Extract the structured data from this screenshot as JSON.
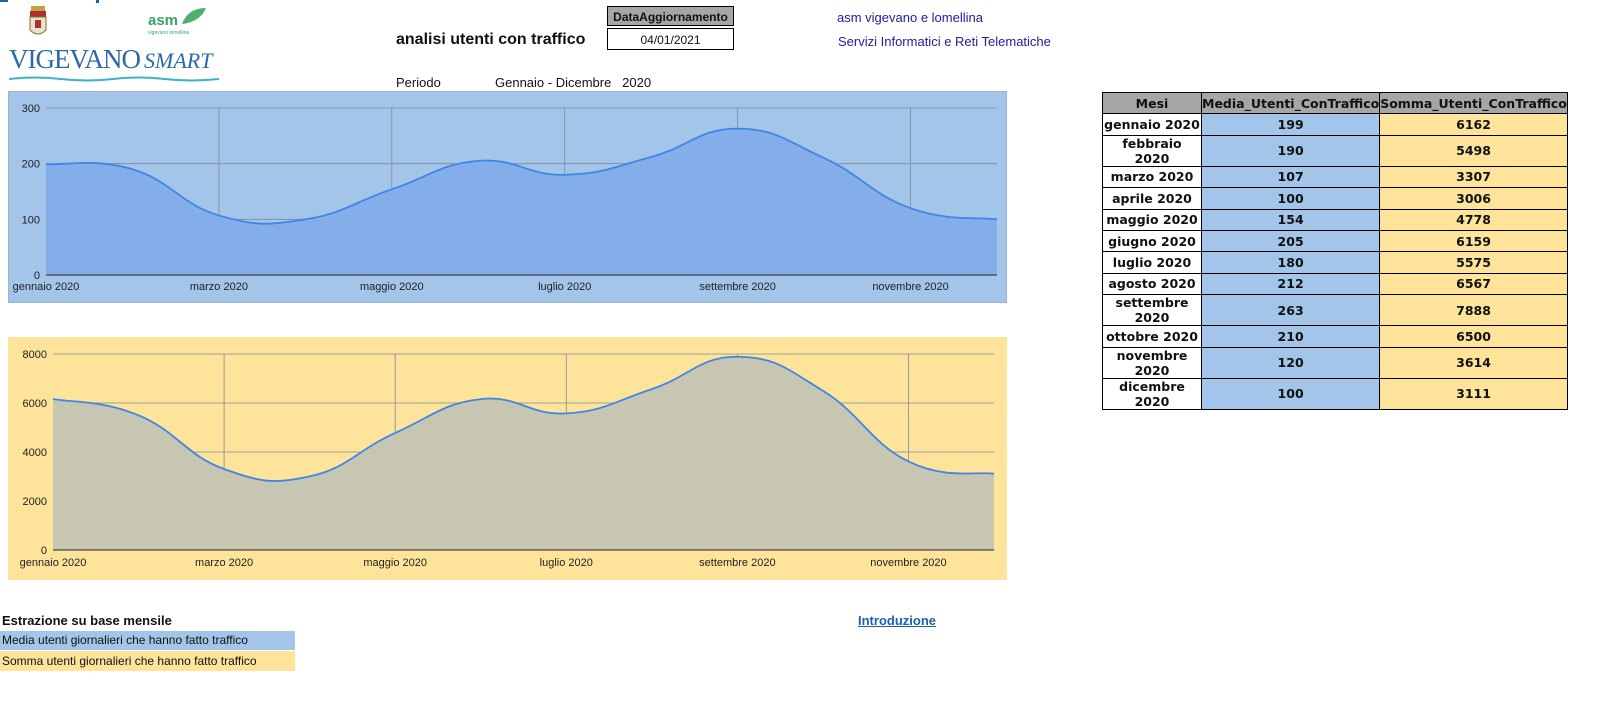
{
  "header": {
    "asm_logo_text": "asm",
    "asm_logo_sub": "vigevano lomellina",
    "vigevano_logo_main": "VIGEVANO",
    "vigevano_logo_smart": "SMART",
    "title": "analisi utenti con traffico",
    "date_label": "DataAggiornamento",
    "date_value": "04/01/2021",
    "org_name": "asm vigevano e lomellina",
    "org_dept": "Servizi Informatici e Reti Telematiche",
    "periodo_label": "Periodo",
    "periodo_value": "Gennaio - Dicembre   2020"
  },
  "colors": {
    "media": "#a3c5ea",
    "somma": "#fde49a",
    "line": "#3f86e6",
    "media_fill": "#84aeea",
    "somma_fill": "#c6c6b3"
  },
  "chart_data": [
    {
      "type": "area",
      "x": [
        "gennaio 2020",
        "febbraio 2020",
        "marzo 2020",
        "aprile 2020",
        "maggio 2020",
        "giugno 2020",
        "luglio 2020",
        "agosto 2020",
        "settembre 2020",
        "ottobre 2020",
        "novembre 2020",
        "dicembre 2020"
      ],
      "x_tick_labels": [
        "gennaio 2020",
        "marzo 2020",
        "maggio 2020",
        "luglio 2020",
        "settembre 2020",
        "novembre 2020"
      ],
      "series": [
        {
          "values": [
            199,
            190,
            107,
            100,
            154,
            205,
            180,
            212,
            263,
            210,
            120,
            100
          ]
        }
      ],
      "ylim": [
        0,
        300
      ],
      "yticks": [
        0,
        100,
        200,
        300
      ],
      "grid": true,
      "smooth": true
    },
    {
      "type": "area",
      "x": [
        "gennaio 2020",
        "febbraio 2020",
        "marzo 2020",
        "aprile 2020",
        "maggio 2020",
        "giugno 2020",
        "luglio 2020",
        "agosto 2020",
        "settembre 2020",
        "ottobre 2020",
        "novembre 2020",
        "dicembre 2020"
      ],
      "x_tick_labels": [
        "gennaio 2020",
        "marzo 2020",
        "maggio 2020",
        "luglio 2020",
        "settembre 2020",
        "novembre 2020"
      ],
      "series": [
        {
          "values": [
            6162,
            5498,
            3307,
            3006,
            4778,
            6159,
            5575,
            6567,
            7888,
            6500,
            3614,
            3111
          ]
        }
      ],
      "ylim": [
        0,
        8000
      ],
      "yticks": [
        0,
        2000,
        4000,
        6000,
        8000
      ],
      "grid": true,
      "smooth": true
    }
  ],
  "table": {
    "headers": [
      "Mesi",
      "Media_Utenti_ConTraffico",
      "Somma_Utenti_ConTraffico"
    ],
    "rows": [
      [
        "gennaio 2020",
        "199",
        "6162"
      ],
      [
        "febbraio 2020",
        "190",
        "5498"
      ],
      [
        "marzo 2020",
        "107",
        "3307"
      ],
      [
        "aprile 2020",
        "100",
        "3006"
      ],
      [
        "maggio 2020",
        "154",
        "4778"
      ],
      [
        "giugno 2020",
        "205",
        "6159"
      ],
      [
        "luglio 2020",
        "180",
        "5575"
      ],
      [
        "agosto 2020",
        "212",
        "6567"
      ],
      [
        "settembre 2020",
        "263",
        "7888"
      ],
      [
        "ottobre 2020",
        "210",
        "6500"
      ],
      [
        "novembre 2020",
        "120",
        "3614"
      ],
      [
        "dicembre 2020",
        "100",
        "3111"
      ]
    ]
  },
  "footer": {
    "estrazione": "Estrazione su base mensile",
    "legend_media": "Media utenti giornalieri che hanno fatto traffico",
    "legend_somma": "Somma utenti giornalieri che hanno fatto traffico",
    "intro_link": "Introduzione"
  }
}
